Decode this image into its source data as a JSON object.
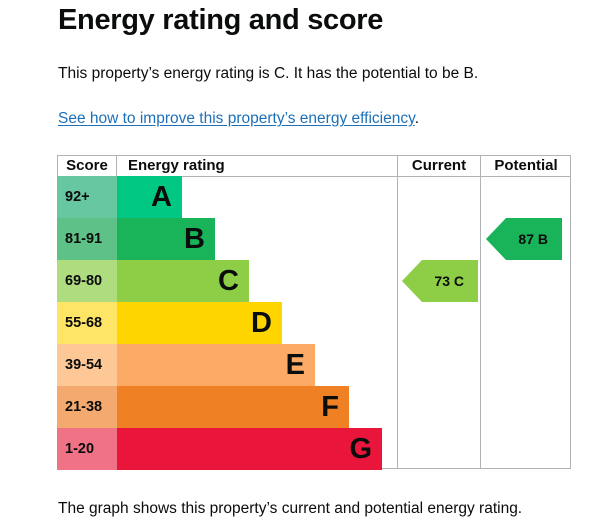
{
  "title": "Energy rating and score",
  "intro": "This property’s energy rating is C. It has the potential to be B.",
  "link_text": "See how to improve this property’s energy efficiency",
  "link_suffix": ".",
  "footer": "The graph shows this property’s current and potential energy rating.",
  "headers": {
    "score": "Score",
    "energy": "Energy rating",
    "current": "Current",
    "potential": "Potential"
  },
  "bands": [
    {
      "score": "92+",
      "letter": "A",
      "bar_color": "#00c781",
      "score_color": "#66c7a1"
    },
    {
      "score": "81-91",
      "letter": "B",
      "bar_color": "#19b459",
      "score_color": "#5ec288"
    },
    {
      "score": "69-80",
      "letter": "C",
      "bar_color": "#8dce46",
      "score_color": "#afdc7e"
    },
    {
      "score": "55-68",
      "letter": "D",
      "bar_color": "#ffd500",
      "score_color": "#ffe566"
    },
    {
      "score": "39-54",
      "letter": "E",
      "bar_color": "#fcaa65",
      "score_color": "#fdc896"
    },
    {
      "score": "21-38",
      "letter": "F",
      "bar_color": "#ef8023",
      "score_color": "#f4aa6e"
    },
    {
      "score": "1-20",
      "letter": "G",
      "bar_color": "#e9153b",
      "score_color": "#f07287"
    }
  ],
  "current": {
    "label": "73 C",
    "band": "C",
    "color": "#8dce46"
  },
  "potential": {
    "label": "87 B",
    "band": "B",
    "color": "#19b459"
  }
}
